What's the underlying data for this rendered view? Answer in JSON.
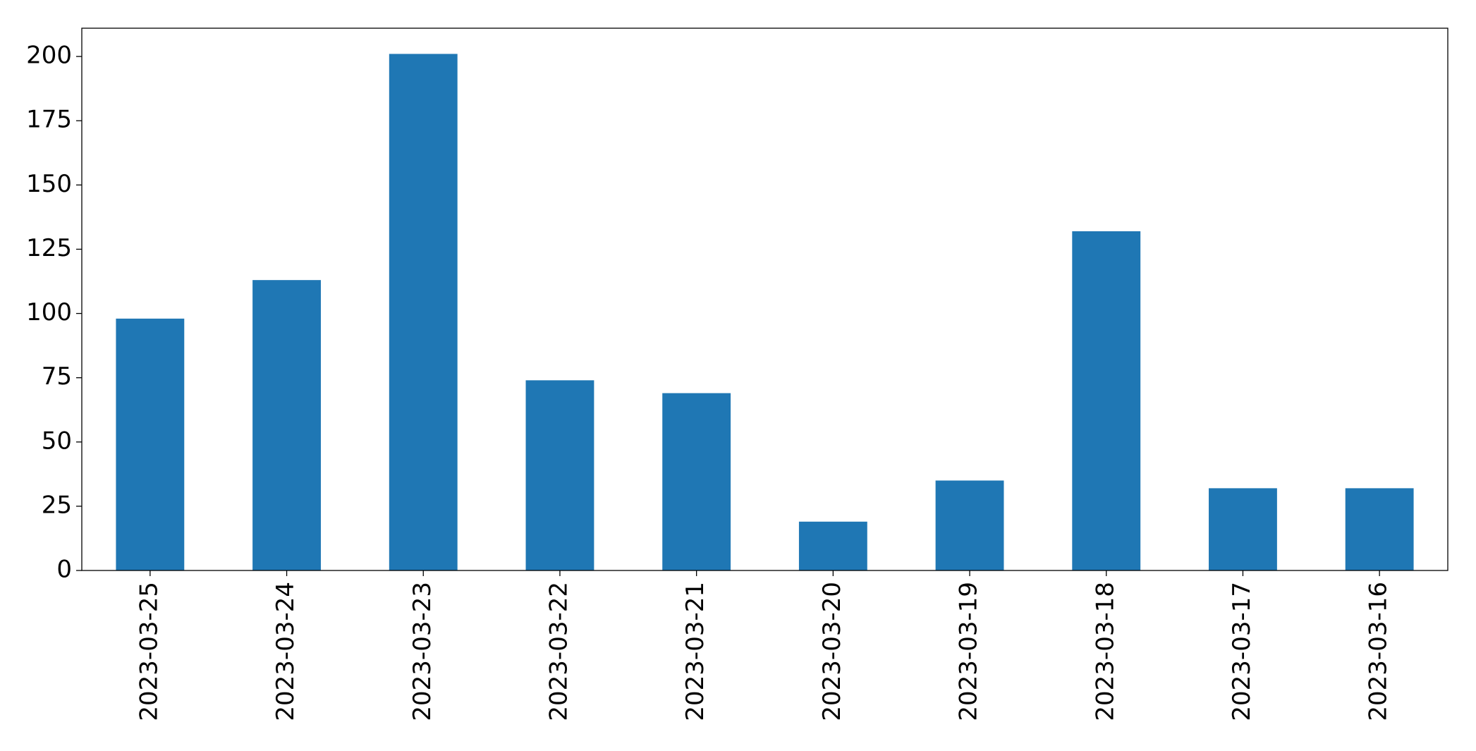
{
  "chart_data": {
    "type": "bar",
    "categories": [
      "2023-03-25",
      "2023-03-24",
      "2023-03-23",
      "2023-03-22",
      "2023-03-21",
      "2023-03-20",
      "2023-03-19",
      "2023-03-18",
      "2023-03-17",
      "2023-03-16"
    ],
    "values": [
      98,
      113,
      201,
      74,
      69,
      19,
      35,
      132,
      32,
      32
    ],
    "color": "#1f77b4",
    "ylim": [
      0,
      211
    ],
    "yticks": [
      0,
      25,
      50,
      75,
      100,
      125,
      150,
      175,
      200
    ],
    "grid": false
  }
}
